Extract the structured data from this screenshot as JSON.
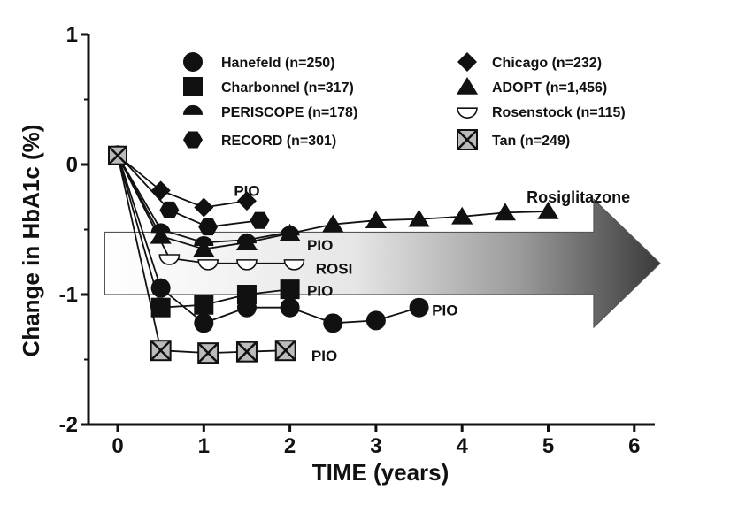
{
  "chart_data": {
    "type": "line",
    "xlabel": "TIME (years)",
    "ylabel": "Change in HbA1c (%)",
    "xlim": [
      -0.2,
      6.4
    ],
    "ylim": [
      -2,
      1
    ],
    "x_ticks": [
      "0",
      "1",
      "2",
      "3",
      "4",
      "5",
      "6"
    ],
    "y_ticks": [
      "1",
      "0",
      "-1",
      "-2"
    ],
    "legend_position": "top",
    "series": [
      {
        "name": "Hanefeld (n=250)",
        "marker": "circle",
        "x": [
          0,
          0.5,
          1,
          1.5,
          2,
          2.5,
          3,
          3.5
        ],
        "y": [
          0.08,
          -0.95,
          -1.22,
          -1.1,
          -1.1,
          -1.22,
          -1.2,
          -1.1
        ]
      },
      {
        "name": "Charbonnel (n=317)",
        "marker": "square",
        "x": [
          0,
          0.5,
          1,
          1.5,
          2
        ],
        "y": [
          0.07,
          -1.1,
          -1.08,
          -1.0,
          -0.96
        ]
      },
      {
        "name": "PERISCOPE (n=178)",
        "marker": "semicircle-up",
        "x": [
          0,
          0.5,
          1,
          1.5,
          2
        ],
        "y": [
          0.07,
          -0.5,
          -0.6,
          -0.58,
          -0.52
        ]
      },
      {
        "name": "RECORD (n=301)",
        "marker": "hexagon",
        "x": [
          0,
          0.6,
          1.05,
          1.65
        ],
        "y": [
          0.08,
          -0.35,
          -0.48,
          -0.43
        ]
      },
      {
        "name": "Chicago (n=232)",
        "marker": "diamond",
        "x": [
          0,
          0.5,
          1,
          1.5
        ],
        "y": [
          0.07,
          -0.2,
          -0.33,
          -0.28
        ]
      },
      {
        "name": "ADOPT (n=1,456)",
        "marker": "triangle",
        "x": [
          0,
          0.5,
          1,
          1.5,
          2,
          2.5,
          3,
          3.5,
          4,
          4.5,
          5
        ],
        "y": [
          0.07,
          -0.55,
          -0.65,
          -0.6,
          -0.53,
          -0.46,
          -0.43,
          -0.42,
          -0.4,
          -0.37,
          -0.36
        ]
      },
      {
        "name": "Rosenstock (n=115)",
        "marker": "semicircle-down",
        "x": [
          0,
          0.6,
          1.05,
          1.5,
          2.05
        ],
        "y": [
          0.07,
          -0.72,
          -0.76,
          -0.76,
          -0.76
        ]
      },
      {
        "name": "Tan (n=249)",
        "marker": "boxed-x",
        "x": [
          0,
          0.5,
          1.05,
          1.5,
          1.95
        ],
        "y": [
          0.07,
          -1.43,
          -1.45,
          -1.44,
          -1.43
        ]
      }
    ],
    "annotations": [
      {
        "text": "PIO",
        "x": 1.35,
        "y": -0.2
      },
      {
        "text": "PIO",
        "x": 2.2,
        "y": -0.62
      },
      {
        "text": "ROSI",
        "x": 2.3,
        "y": -0.8
      },
      {
        "text": "PIO",
        "x": 2.2,
        "y": -0.97
      },
      {
        "text": "PIO",
        "x": 3.65,
        "y": -1.12
      },
      {
        "text": "PIO",
        "x": 2.25,
        "y": -1.47
      },
      {
        "text": "Rosiglitazone",
        "x": 4.75,
        "y": -0.25
      }
    ],
    "arrow_band": {
      "x_start": -0.15,
      "x_end": 6.3,
      "y_top": -0.52,
      "y_bottom": -1.0
    }
  },
  "colors": {
    "ink": "#111111",
    "arrow_light": "#ffffff",
    "arrow_dark": "#3a3a3a"
  }
}
